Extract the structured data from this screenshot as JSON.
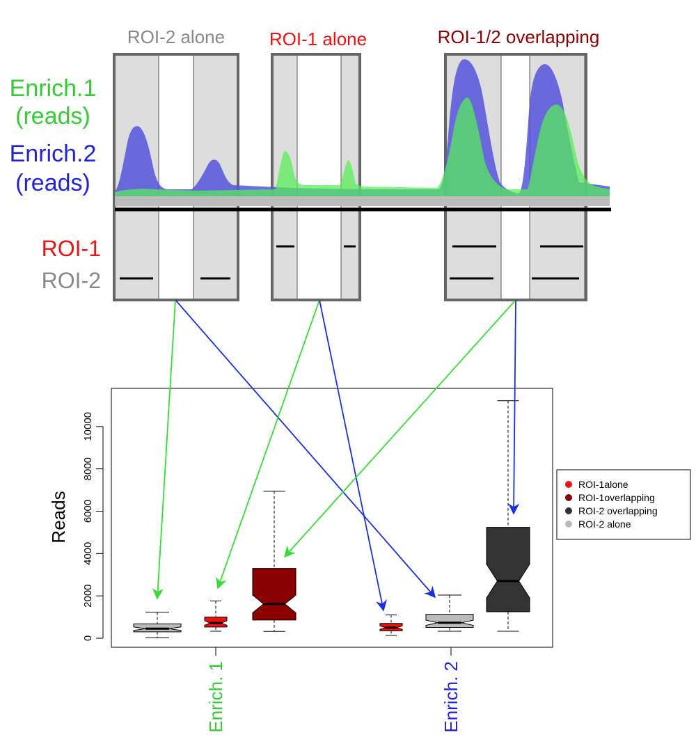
{
  "schematic": {
    "panels": [
      {
        "label": "ROI-2 alone",
        "color": "#888888"
      },
      {
        "label": "ROI-1 alone",
        "color": "#ee1111"
      },
      {
        "label": "ROI-1/2 overlapping",
        "color": "#8b0000"
      }
    ],
    "track_labels": [
      {
        "line1": "Enrich.1",
        "line2": "(reads)",
        "color": "#33cc33"
      },
      {
        "line1": "Enrich.2",
        "line2": "(reads)",
        "color": "#2222dd"
      }
    ],
    "roi_labels": [
      {
        "label": "ROI-1",
        "color": "#ee1111"
      },
      {
        "label": "ROI-2",
        "color": "#888888"
      }
    ],
    "track_colors": {
      "enrich1": "#55ee55",
      "enrich2": "#5555dd"
    }
  },
  "chart_data": {
    "type": "boxplot",
    "ylabel": "Reads",
    "ylim": [
      0,
      11600
    ],
    "yticks": [
      0,
      2000,
      4000,
      6000,
      8000,
      10000
    ],
    "groups": [
      {
        "label": "Enrich. 1",
        "color": "#33cc33"
      },
      {
        "label": "Enrich. 2",
        "color": "#2222dd"
      }
    ],
    "series": [
      {
        "name": "ROI-1alone",
        "color": "#ee1111"
      },
      {
        "name": "ROI-1overlapping",
        "color": "#8b0000"
      },
      {
        "name": "ROI-2 overlapping",
        "color": "#333333"
      },
      {
        "name": "ROI-2 alone",
        "color": "#bbbbbb"
      }
    ],
    "boxes": [
      {
        "group": "Enrich. 1",
        "series": "ROI-2 alone",
        "min": 20,
        "q1": 300,
        "median": 450,
        "q3": 680,
        "max": 1230
      },
      {
        "group": "Enrich. 1",
        "series": "ROI-1alone",
        "min": 330,
        "q1": 530,
        "median": 720,
        "q3": 1000,
        "max": 1760
      },
      {
        "group": "Enrich. 1",
        "series": "ROI-1overlapping",
        "min": 320,
        "q1": 860,
        "median": 1620,
        "q3": 3300,
        "max": 6940
      },
      {
        "group": "Enrich. 2",
        "series": "ROI-1alone",
        "min": 130,
        "q1": 350,
        "median": 500,
        "q3": 700,
        "max": 1100
      },
      {
        "group": "Enrich. 2",
        "series": "ROI-2 alone",
        "min": 330,
        "q1": 510,
        "median": 730,
        "q3": 1130,
        "max": 2040
      },
      {
        "group": "Enrich. 2",
        "series": "ROI-2 overlapping",
        "min": 330,
        "q1": 1250,
        "median": 2700,
        "q3": 5240,
        "max": 11220
      }
    ],
    "legend": "right"
  }
}
